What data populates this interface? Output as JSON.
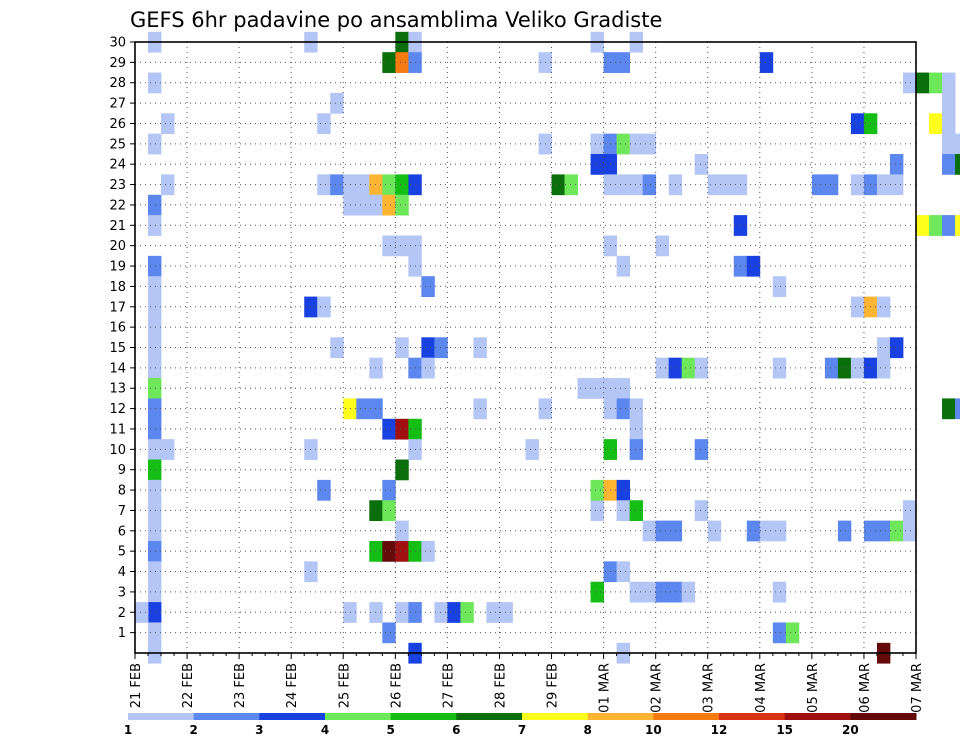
{
  "chart_data": {
    "type": "heatmap",
    "title": "GEFS 6hr padavine po ansamblima Veliko Gradiste",
    "xlabel": "",
    "ylabel": "",
    "x_ticks": [
      "21 FEB",
      "22 FEB",
      "23 FEB",
      "24 FEB",
      "25 FEB",
      "26 FEB",
      "27 FEB",
      "28 FEB",
      "29 FEB",
      "01 MAR",
      "02 MAR",
      "03 MAR",
      "04 MAR",
      "05 MAR",
      "06 MAR",
      "07 MAR"
    ],
    "y_ticks": [
      1,
      2,
      3,
      4,
      5,
      6,
      7,
      8,
      9,
      10,
      11,
      12,
      13,
      14,
      15,
      16,
      17,
      18,
      19,
      20,
      21,
      22,
      23,
      24,
      25,
      26,
      27,
      28,
      29,
      30
    ],
    "time_steps_per_day": 4,
    "grid": true,
    "colorbar": {
      "levels": [
        1,
        2,
        3,
        4,
        5,
        6,
        7,
        8,
        10,
        12,
        15,
        20
      ],
      "colors": [
        "#b4c6f6",
        "#5b87ee",
        "#1941e1",
        "#6ee85a",
        "#14be14",
        "#0a6e0a",
        "#ffff1e",
        "#ffb432",
        "#f57a10",
        "#dc3214",
        "#a01010",
        "#640a0a"
      ]
    },
    "cells": [
      [
        1,
        30,
        0
      ],
      [
        1,
        28,
        0
      ],
      [
        1,
        25,
        0
      ],
      [
        1,
        22,
        1
      ],
      [
        1,
        21,
        0
      ],
      [
        1,
        19,
        1
      ],
      [
        1,
        18,
        0
      ],
      [
        1,
        17,
        0
      ],
      [
        1,
        16,
        0
      ],
      [
        1,
        15,
        0
      ],
      [
        1,
        14,
        0
      ],
      [
        1,
        13,
        3
      ],
      [
        1,
        12,
        1
      ],
      [
        1,
        11,
        1
      ],
      [
        1,
        10,
        0
      ],
      [
        1,
        9,
        4
      ],
      [
        1,
        8,
        0
      ],
      [
        1,
        7,
        0
      ],
      [
        1,
        6,
        0
      ],
      [
        1,
        5,
        1
      ],
      [
        1,
        4,
        0
      ],
      [
        1,
        3,
        0
      ],
      [
        1,
        2,
        2
      ],
      [
        1,
        1,
        0
      ],
      [
        1,
        0,
        0
      ],
      [
        0,
        2,
        0
      ],
      [
        2,
        26,
        0
      ],
      [
        2,
        23,
        0
      ],
      [
        2,
        10,
        0
      ],
      [
        13,
        30,
        0
      ],
      [
        13,
        17,
        2
      ],
      [
        13,
        10,
        0
      ],
      [
        13,
        4,
        0
      ],
      [
        14,
        26,
        0
      ],
      [
        14,
        23,
        0
      ],
      [
        14,
        17,
        0
      ],
      [
        14,
        8,
        1
      ],
      [
        15,
        27,
        0
      ],
      [
        15,
        23,
        1
      ],
      [
        15,
        15,
        0
      ],
      [
        16,
        23,
        0
      ],
      [
        16,
        22,
        0
      ],
      [
        16,
        12,
        6
      ],
      [
        16,
        2,
        0
      ],
      [
        17,
        23,
        0
      ],
      [
        17,
        22,
        0
      ],
      [
        17,
        12,
        1
      ],
      [
        18,
        23,
        7
      ],
      [
        18,
        22,
        0
      ],
      [
        18,
        12,
        1
      ],
      [
        18,
        14,
        0
      ],
      [
        18,
        2,
        0
      ],
      [
        18,
        5,
        4
      ],
      [
        18,
        7,
        5
      ],
      [
        19,
        29,
        5
      ],
      [
        19,
        23,
        3
      ],
      [
        19,
        22,
        7
      ],
      [
        19,
        20,
        0
      ],
      [
        19,
        11,
        2
      ],
      [
        19,
        8,
        1
      ],
      [
        19,
        7,
        3
      ],
      [
        19,
        5,
        11
      ],
      [
        19,
        1,
        1
      ],
      [
        20,
        30,
        5
      ],
      [
        20,
        29,
        8
      ],
      [
        20,
        23,
        4
      ],
      [
        20,
        22,
        3
      ],
      [
        20,
        20,
        0
      ],
      [
        20,
        15,
        0
      ],
      [
        20,
        11,
        10
      ],
      [
        20,
        9,
        5
      ],
      [
        20,
        6,
        0
      ],
      [
        20,
        5,
        10
      ],
      [
        20,
        2,
        0
      ],
      [
        21,
        30,
        0
      ],
      [
        21,
        29,
        1
      ],
      [
        21,
        23,
        2
      ],
      [
        21,
        20,
        0
      ],
      [
        21,
        19,
        0
      ],
      [
        21,
        14,
        1
      ],
      [
        21,
        11,
        4
      ],
      [
        21,
        10,
        0
      ],
      [
        21,
        5,
        4
      ],
      [
        21,
        2,
        1
      ],
      [
        21,
        0,
        2
      ],
      [
        22,
        18,
        1
      ],
      [
        22,
        15,
        2
      ],
      [
        22,
        14,
        0
      ],
      [
        22,
        5,
        0
      ],
      [
        23,
        15,
        1
      ],
      [
        23,
        2,
        0
      ],
      [
        24,
        2,
        2
      ],
      [
        25,
        2,
        3
      ],
      [
        26,
        15,
        0
      ],
      [
        26,
        12,
        0
      ],
      [
        27,
        2,
        0
      ],
      [
        28,
        2,
        0
      ],
      [
        30,
        10,
        0
      ],
      [
        31,
        29,
        0
      ],
      [
        31,
        25,
        0
      ],
      [
        31,
        12,
        0
      ],
      [
        32,
        23,
        5
      ],
      [
        33,
        23,
        3
      ],
      [
        34,
        13,
        0
      ],
      [
        35,
        30,
        0
      ],
      [
        35,
        25,
        0
      ],
      [
        35,
        24,
        2
      ],
      [
        35,
        13,
        0
      ],
      [
        35,
        7,
        0
      ],
      [
        35,
        8,
        3
      ],
      [
        35,
        3,
        4
      ],
      [
        36,
        29,
        1
      ],
      [
        36,
        25,
        1
      ],
      [
        36,
        24,
        2
      ],
      [
        36,
        23,
        0
      ],
      [
        36,
        20,
        0
      ],
      [
        36,
        13,
        0
      ],
      [
        36,
        12,
        0
      ],
      [
        36,
        10,
        4
      ],
      [
        36,
        8,
        7
      ],
      [
        36,
        4,
        1
      ],
      [
        37,
        29,
        1
      ],
      [
        37,
        25,
        3
      ],
      [
        37,
        23,
        0
      ],
      [
        37,
        19,
        0
      ],
      [
        37,
        13,
        0
      ],
      [
        37,
        12,
        1
      ],
      [
        37,
        8,
        2
      ],
      [
        37,
        7,
        0
      ],
      [
        37,
        4,
        0
      ],
      [
        37,
        0,
        0
      ],
      [
        38,
        30,
        0
      ],
      [
        38,
        25,
        0
      ],
      [
        38,
        23,
        0
      ],
      [
        38,
        12,
        0
      ],
      [
        38,
        11,
        0
      ],
      [
        38,
        10,
        1
      ],
      [
        38,
        7,
        4
      ],
      [
        38,
        3,
        0
      ],
      [
        39,
        25,
        0
      ],
      [
        39,
        23,
        1
      ],
      [
        39,
        6,
        0
      ],
      [
        39,
        3,
        0
      ],
      [
        40,
        20,
        0
      ],
      [
        40,
        14,
        0
      ],
      [
        40,
        6,
        1
      ],
      [
        40,
        3,
        1
      ],
      [
        41,
        23,
        0
      ],
      [
        41,
        14,
        2
      ],
      [
        41,
        6,
        1
      ],
      [
        41,
        3,
        1
      ],
      [
        42,
        14,
        3
      ],
      [
        42,
        3,
        0
      ],
      [
        43,
        24,
        0
      ],
      [
        43,
        14,
        0
      ],
      [
        43,
        10,
        1
      ],
      [
        43,
        7,
        0
      ],
      [
        44,
        23,
        0
      ],
      [
        44,
        6,
        0
      ],
      [
        45,
        23,
        0
      ],
      [
        46,
        23,
        0
      ],
      [
        46,
        21,
        2
      ],
      [
        46,
        19,
        1
      ],
      [
        47,
        19,
        2
      ],
      [
        47,
        6,
        1
      ],
      [
        48,
        29,
        2
      ],
      [
        48,
        6,
        0
      ],
      [
        49,
        18,
        0
      ],
      [
        49,
        14,
        0
      ],
      [
        49,
        6,
        0
      ],
      [
        49,
        3,
        0
      ],
      [
        49,
        1,
        1
      ],
      [
        50,
        1,
        3
      ],
      [
        52,
        23,
        1
      ],
      [
        53,
        23,
        1
      ],
      [
        53,
        14,
        1
      ],
      [
        54,
        14,
        5
      ],
      [
        54,
        6,
        1
      ],
      [
        55,
        26,
        2
      ],
      [
        55,
        23,
        0
      ],
      [
        55,
        17,
        0
      ],
      [
        55,
        14,
        0
      ],
      [
        56,
        26,
        4
      ],
      [
        56,
        23,
        1
      ],
      [
        56,
        17,
        7
      ],
      [
        56,
        14,
        2
      ],
      [
        56,
        6,
        1
      ],
      [
        57,
        23,
        0
      ],
      [
        57,
        17,
        0
      ],
      [
        57,
        15,
        0
      ],
      [
        57,
        14,
        0
      ],
      [
        57,
        6,
        1
      ],
      [
        57,
        0,
        11
      ],
      [
        58,
        24,
        1
      ],
      [
        58,
        23,
        0
      ],
      [
        58,
        15,
        2
      ],
      [
        58,
        6,
        3
      ],
      [
        59,
        28,
        0
      ],
      [
        59,
        7,
        0
      ],
      [
        59,
        6,
        0
      ],
      [
        60,
        28,
        5
      ],
      [
        60,
        21,
        6
      ],
      [
        61,
        28,
        3
      ],
      [
        61,
        26,
        6
      ],
      [
        61,
        21,
        3
      ],
      [
        62,
        28,
        0
      ],
      [
        62,
        27,
        0
      ],
      [
        62,
        26,
        0
      ],
      [
        62,
        25,
        0
      ],
      [
        62,
        24,
        1
      ],
      [
        62,
        21,
        1
      ],
      [
        62,
        12,
        5
      ],
      [
        63,
        25,
        0
      ],
      [
        63,
        24,
        5
      ],
      [
        63,
        21,
        6
      ],
      [
        63,
        12,
        1
      ]
    ]
  }
}
